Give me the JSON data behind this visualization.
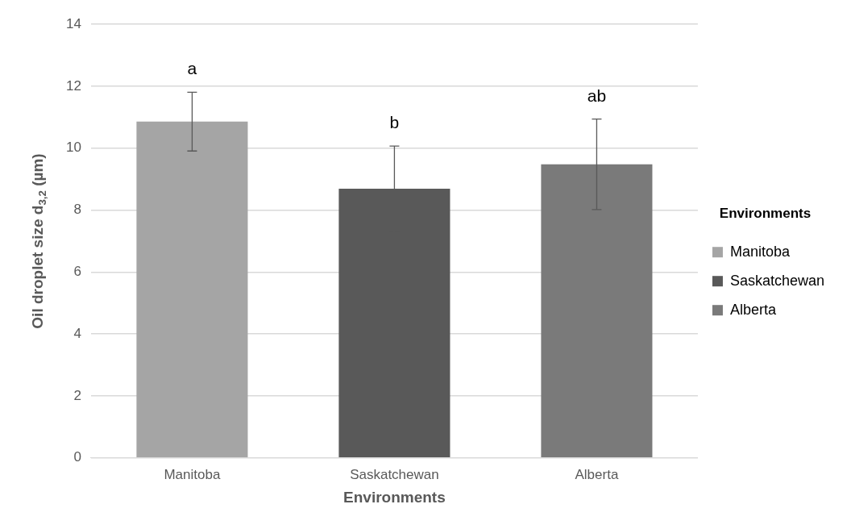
{
  "chart_data": {
    "type": "bar",
    "xlabel": "Environments",
    "ylabel": "Oil droplet size d$_{3,2}$ (µm)",
    "legend_title": "Environments",
    "categories": [
      "Manitoba",
      "Saskatchewan",
      "Alberta"
    ],
    "series": [
      {
        "name": "Manitoba",
        "color": "#a5a5a5",
        "values": [
          10.86,
          null,
          null
        ],
        "errors": [
          0.95,
          null,
          null
        ]
      },
      {
        "name": "Saskatchewan",
        "color": "#595959",
        "values": [
          null,
          8.69,
          null
        ],
        "errors": [
          null,
          1.38,
          null
        ]
      },
      {
        "name": "Alberta",
        "color": "#7a7a7a",
        "values": [
          null,
          null,
          9.48
        ],
        "errors": [
          null,
          null,
          1.46
        ]
      }
    ],
    "ylim": [
      0,
      14
    ],
    "yticks": [
      0,
      2,
      4,
      6,
      8,
      10,
      12,
      14
    ],
    "grid": "y",
    "legend": "right",
    "annotations": [
      "a",
      "b",
      "ab"
    ]
  }
}
